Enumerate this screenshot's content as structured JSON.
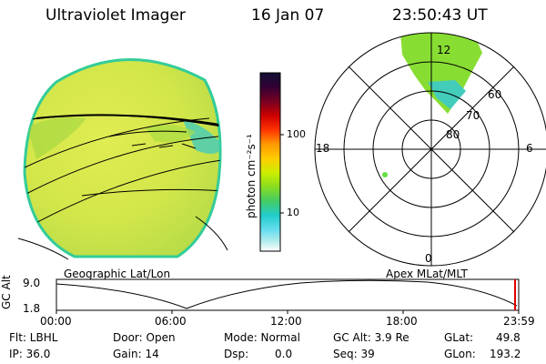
{
  "header": {
    "instrument": "Ultraviolet Imager",
    "date": "16 Jan 07",
    "time": "23:50:43 UT"
  },
  "colorbar": {
    "label": "photon cm⁻²s⁻¹",
    "ticks": [
      {
        "label": "100",
        "value": 100
      },
      {
        "label": "10",
        "value": 10
      }
    ],
    "colors": [
      "#111133",
      "#330033",
      "#770022",
      "#cc0000",
      "#ff3300",
      "#ff9900",
      "#ffcc00",
      "#ccee00",
      "#88dd22",
      "#44cc66",
      "#22cccc",
      "#66ddee",
      "#bbeeee",
      "#ffffff"
    ]
  },
  "globe_panel": {
    "caption": "Geographic Lat/Lon",
    "fill_color": "#d4e84a",
    "edge_color": "#44cc88"
  },
  "polar_panel": {
    "caption": "Apex MLat/MLT",
    "mlt_labels": {
      "top": "12",
      "left": "18",
      "right": "6",
      "bottom": "0"
    },
    "lat_labels": [
      "60",
      "70",
      "80"
    ]
  },
  "altitude_plot": {
    "ylabel": "GC Alt",
    "y_ticks": [
      "9.0",
      "1.8"
    ],
    "x_ticks": [
      "00:00",
      "06:00",
      "12:00",
      "18:00",
      "23:59"
    ]
  },
  "footer": {
    "filter": "Flt: LBHL",
    "ip": "IP: 36.0",
    "door": "Door: Open",
    "gain": "Gain: 14",
    "mode": "Mode: Normal",
    "dsp_label": "Dsp:",
    "dsp_value": "0.0",
    "gc_alt": "GC Alt: 3.9 Re",
    "seq": "Seq: 39",
    "glat_label": "GLat:",
    "glat_value": "49.8",
    "glon_label": "GLon:",
    "glon_value": "193.2"
  }
}
